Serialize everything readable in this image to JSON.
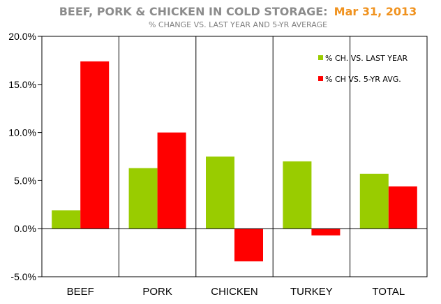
{
  "chart_data": {
    "type": "bar",
    "title": "BEEF, PORK & CHICKEN IN COLD STORAGE:",
    "title_date": "Mar 31, 2013",
    "subtitle": "% CHANGE VS. LAST YEAR AND 5-YR AVERAGE",
    "categories": [
      "BEEF",
      "PORK",
      "CHICKEN",
      "TURKEY",
      "TOTAL"
    ],
    "series": [
      {
        "name": "% CH. VS. LAST YEAR",
        "color": "#99cc00",
        "values": [
          1.9,
          6.3,
          7.5,
          7.0,
          5.7
        ]
      },
      {
        "name": "% CH VS. 5-YR AVG.",
        "color": "#ff0000",
        "values": [
          17.4,
          10.0,
          -3.4,
          -0.7,
          4.4
        ]
      }
    ],
    "ylim": [
      -5,
      20
    ],
    "yticks": [
      -5,
      0,
      5,
      10,
      15,
      20
    ],
    "ytick_labels": [
      "-5.0%",
      "0.0%",
      "5.0%",
      "10.0%",
      "15.0%",
      "20.0%"
    ],
    "legend": "top-right",
    "grid": false,
    "category_dividers": true
  }
}
